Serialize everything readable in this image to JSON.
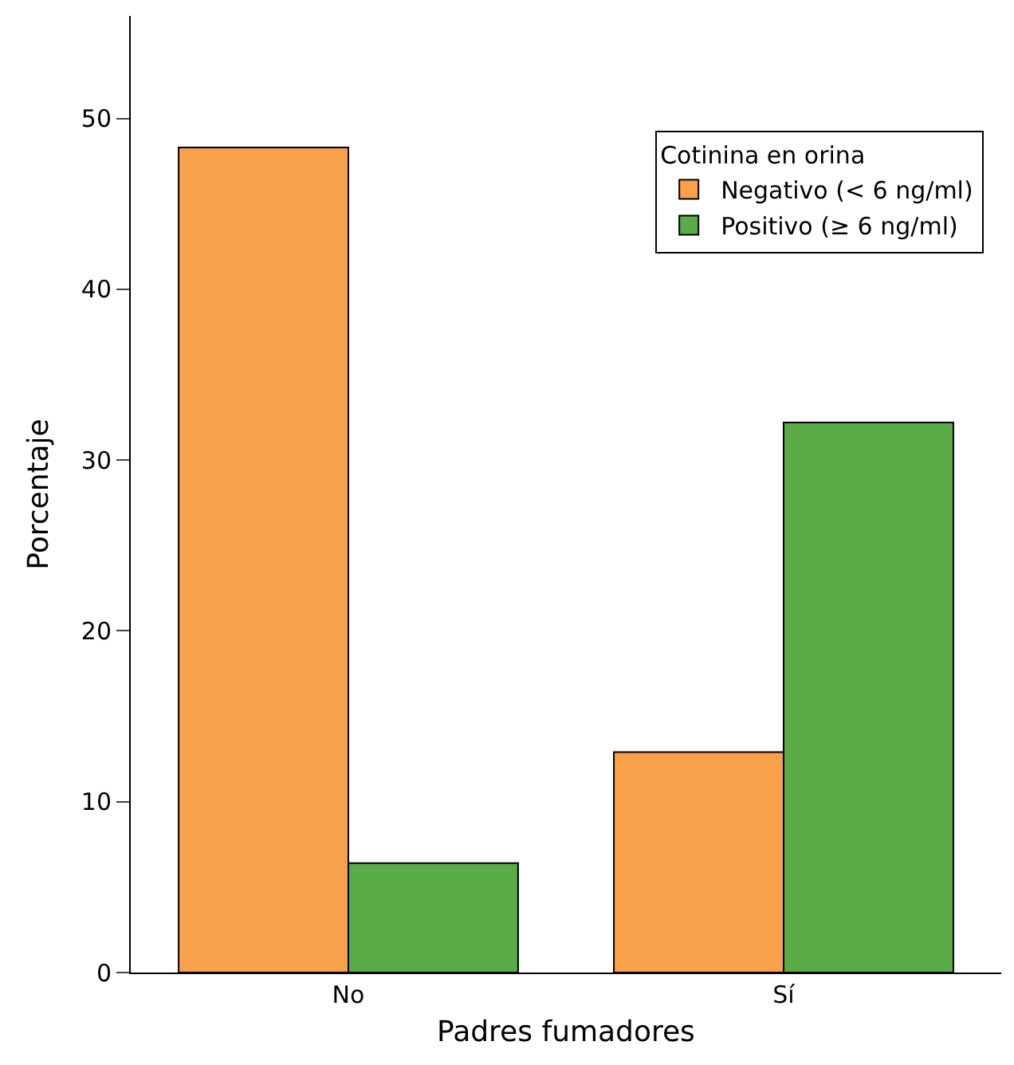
{
  "chart_data": {
    "type": "bar",
    "xlabel": "Padres fumadores",
    "ylabel": "Porcentaje",
    "legend_title": "Cotinina en orina",
    "categories": [
      "No",
      "Sí"
    ],
    "series": [
      {
        "name": "Negativo (< 6 ng/ml)",
        "color": "#f9a04a",
        "values": [
          48.3,
          12.9
        ]
      },
      {
        "name": "Positivo (≥ 6 ng/ml)",
        "color": "#5aac46",
        "values": [
          6.4,
          32.2
        ]
      }
    ],
    "ylim": [
      0,
      56
    ],
    "yticks": [
      0,
      10,
      20,
      30,
      40,
      50
    ],
    "legend": "top right"
  }
}
